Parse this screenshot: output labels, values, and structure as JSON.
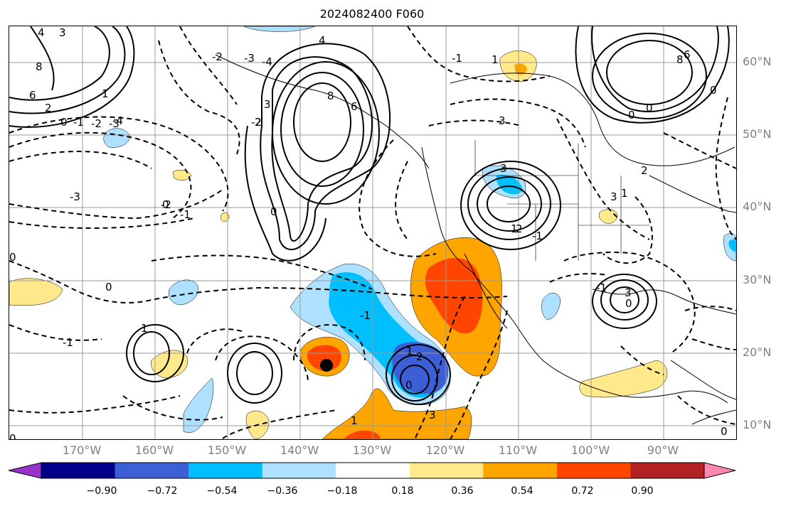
{
  "title": "2024082400 F060",
  "lat_labels": [
    "60°N",
    "50°N",
    "40°N",
    "30°N",
    "20°N",
    "10°N"
  ],
  "lon_labels": [
    "170°W",
    "160°W",
    "150°W",
    "140°W",
    "130°W",
    "120°W",
    "110°W",
    "100°W",
    "90°W"
  ],
  "colorbar": {
    "ticks": [
      "−0.90",
      "−0.72",
      "−0.54",
      "−0.36",
      "−0.18",
      "0.18",
      "0.36",
      "0.54",
      "0.72",
      "0.90"
    ],
    "colors": [
      "#9932CC",
      "#00008B",
      "#3D5FD6",
      "#00BFFF",
      "#ADE1FF",
      "#FFFFFF",
      "#FFE98A",
      "#FFA500",
      "#FF4500",
      "#B22222",
      "#FF88B0"
    ]
  },
  "contour_labels": [
    "4",
    "3",
    "8",
    "6",
    "2",
    "0",
    "-1",
    "-2",
    "-3",
    "-4",
    "1",
    "4",
    "8",
    "6",
    "3",
    "2",
    "-2",
    "-3",
    "-4",
    "-1",
    "0",
    "-3",
    "-2",
    "-1",
    "3",
    "1",
    "0",
    "-1",
    "-2",
    "3",
    "1",
    "2",
    "-1",
    "0",
    "0",
    "1",
    "3",
    "0",
    "-1",
    "0",
    "0",
    "1",
    "-1",
    "0",
    "1",
    "2",
    "0",
    "1",
    "3",
    "6",
    "8",
    "0",
    "2",
    "0",
    "3"
  ],
  "storm_center": "tropical-cyclone-marker"
}
